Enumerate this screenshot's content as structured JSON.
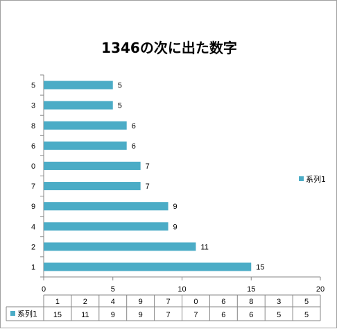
{
  "chart_data": {
    "type": "bar",
    "orientation": "horizontal",
    "title": "1346の次に出た数字",
    "categories": [
      "1",
      "2",
      "4",
      "9",
      "7",
      "0",
      "6",
      "8",
      "3",
      "5"
    ],
    "series": [
      {
        "name": "系列1",
        "values": [
          15,
          11,
          9,
          9,
          7,
          7,
          6,
          6,
          5,
          5
        ],
        "color": "#4bacc6"
      }
    ],
    "xlim": [
      0,
      20
    ],
    "xticks": [
      0,
      5,
      10,
      15,
      20
    ],
    "grid": false,
    "legend": "right",
    "data_table": true
  }
}
